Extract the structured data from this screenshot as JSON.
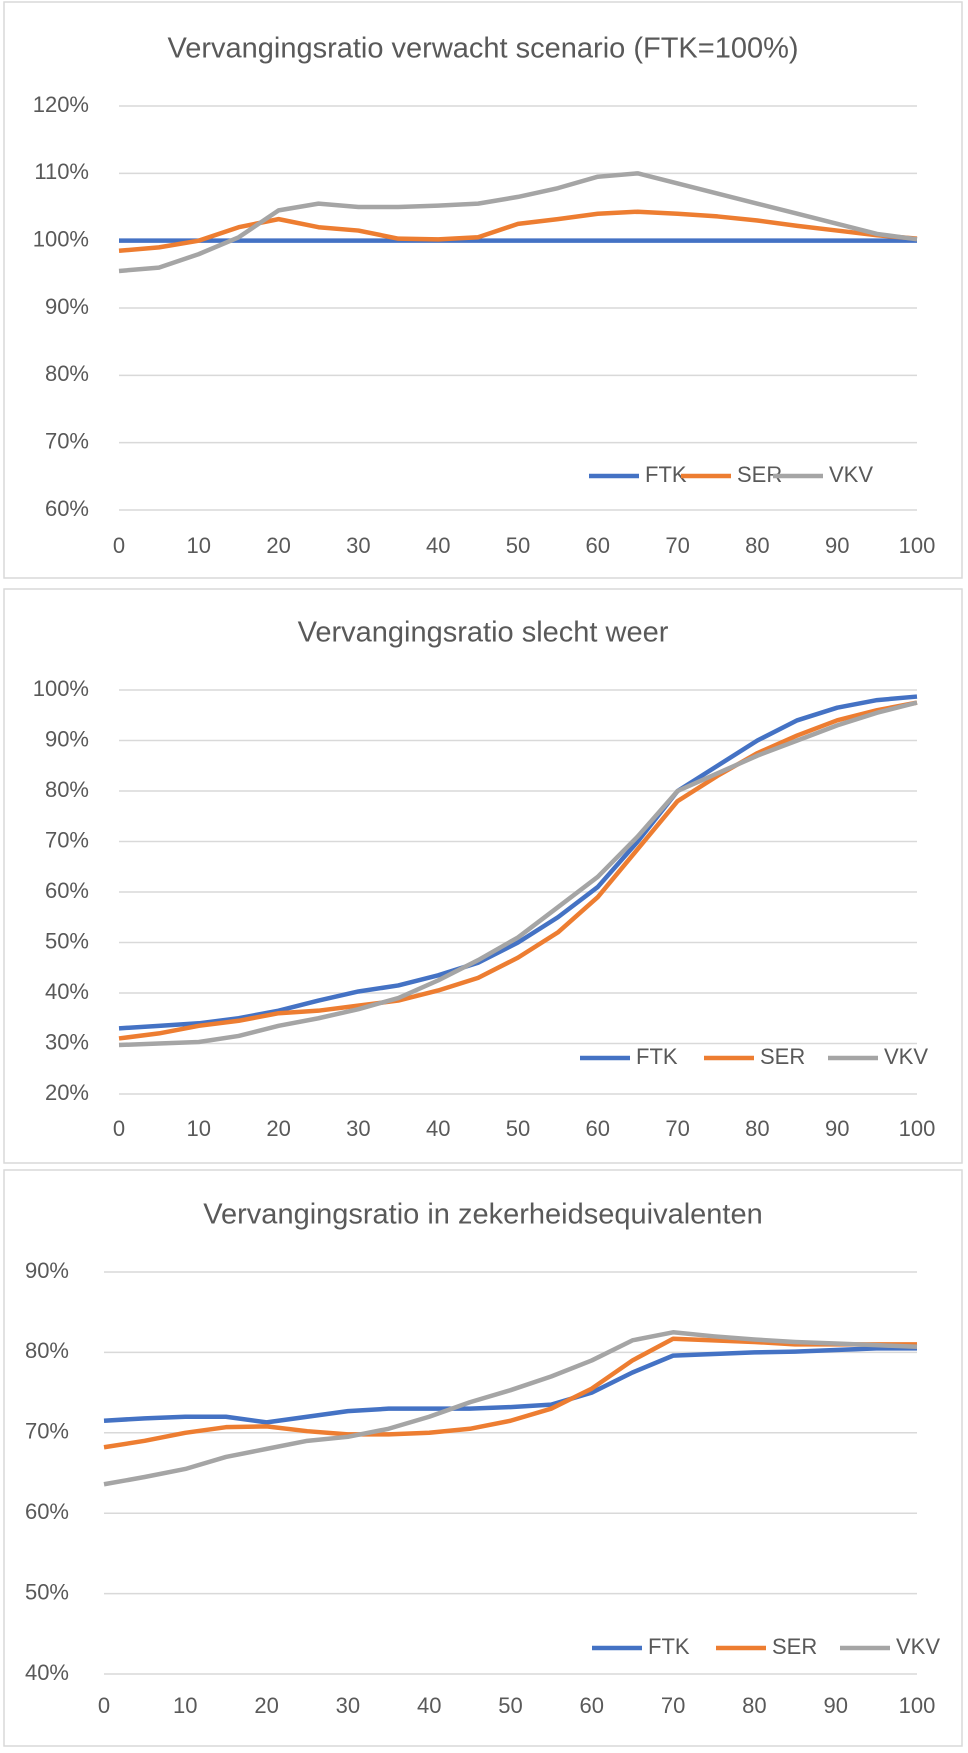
{
  "chart_data": [
    {
      "type": "line",
      "title": "Vervangingsratio verwacht scenario (FTK=100%)",
      "x": [
        0,
        5,
        10,
        15,
        20,
        25,
        30,
        35,
        40,
        45,
        50,
        55,
        60,
        65,
        70,
        75,
        80,
        85,
        90,
        95,
        100
      ],
      "xlim": [
        0,
        100
      ],
      "xticks": [
        0,
        10,
        20,
        30,
        40,
        50,
        60,
        70,
        80,
        90,
        100
      ],
      "ylim": [
        60,
        120
      ],
      "yticks": [
        {
          "value": 60,
          "label": "60%"
        },
        {
          "value": 70,
          "label": "70%"
        },
        {
          "value": 80,
          "label": "80%"
        },
        {
          "value": 90,
          "label": "90%"
        },
        {
          "value": 100,
          "label": "100%"
        },
        {
          "value": 110,
          "label": "110%"
        },
        {
          "value": 120,
          "label": "120%"
        }
      ],
      "grid": true,
      "legend": "bottom-right",
      "series": [
        {
          "name": "FTK",
          "color": "#4472c4",
          "values": [
            100,
            100,
            100,
            100,
            100,
            100,
            100,
            100,
            100,
            100,
            100,
            100,
            100,
            100,
            100,
            100,
            100,
            100,
            100,
            100,
            100
          ]
        },
        {
          "name": "SER",
          "color": "#ed7d31",
          "values": [
            98.5,
            99,
            100,
            102,
            103.2,
            102,
            101.5,
            100.3,
            100.2,
            100.5,
            102.5,
            103.2,
            104,
            104.3,
            104,
            103.6,
            103,
            102.2,
            101.5,
            100.8,
            100.3
          ]
        },
        {
          "name": "VKV",
          "color": "#a5a5a5",
          "values": [
            95.5,
            96,
            98,
            100.5,
            104.5,
            105.5,
            105,
            105,
            105.2,
            105.5,
            106.5,
            107.8,
            109.5,
            110,
            108.5,
            107,
            105.5,
            104,
            102.5,
            101,
            100.2
          ]
        }
      ]
    },
    {
      "type": "line",
      "title": "Vervangingsratio slecht weer",
      "x": [
        0,
        5,
        10,
        15,
        20,
        25,
        30,
        35,
        40,
        45,
        50,
        55,
        60,
        65,
        70,
        75,
        80,
        85,
        90,
        95,
        100
      ],
      "xlim": [
        0,
        100
      ],
      "xticks": [
        0,
        10,
        20,
        30,
        40,
        50,
        60,
        70,
        80,
        90,
        100
      ],
      "ylim": [
        20,
        100
      ],
      "yticks": [
        {
          "value": 20,
          "label": "20%"
        },
        {
          "value": 30,
          "label": "30%"
        },
        {
          "value": 40,
          "label": "40%"
        },
        {
          "value": 50,
          "label": "50%"
        },
        {
          "value": 60,
          "label": "60%"
        },
        {
          "value": 70,
          "label": "70%"
        },
        {
          "value": 80,
          "label": "80%"
        },
        {
          "value": 90,
          "label": "90%"
        },
        {
          "value": 100,
          "label": "100%"
        }
      ],
      "grid": true,
      "legend": "bottom-right",
      "series": [
        {
          "name": "FTK",
          "color": "#4472c4",
          "values": [
            33,
            33.5,
            34,
            35,
            36.5,
            38.5,
            40.3,
            41.5,
            43.5,
            46,
            50,
            55,
            61,
            70,
            80,
            85,
            90,
            94,
            96.5,
            98,
            98.7
          ]
        },
        {
          "name": "SER",
          "color": "#ed7d31",
          "values": [
            31,
            32,
            33.5,
            34.5,
            36,
            36.5,
            37.5,
            38.5,
            40.5,
            43,
            47,
            52,
            59,
            68.5,
            78,
            83,
            87.5,
            91,
            94,
            96,
            97.5
          ]
        },
        {
          "name": "VKV",
          "color": "#a5a5a5",
          "values": [
            29.7,
            30,
            30.3,
            31.5,
            33.5,
            35,
            36.8,
            39,
            42.5,
            46.5,
            51,
            57,
            63,
            71,
            80,
            83.5,
            87,
            90,
            93,
            95.5,
            97.5
          ]
        }
      ]
    },
    {
      "type": "line",
      "title": "Vervangingsratio in zekerheidsequivalenten",
      "x": [
        0,
        5,
        10,
        15,
        20,
        25,
        30,
        35,
        40,
        45,
        50,
        55,
        60,
        65,
        70,
        75,
        80,
        85,
        90,
        95,
        100
      ],
      "xlim": [
        0,
        100
      ],
      "xticks": [
        0,
        10,
        20,
        30,
        40,
        50,
        60,
        70,
        80,
        90,
        100
      ],
      "ylim": [
        40,
        90
      ],
      "yticks": [
        {
          "value": 40,
          "label": "40%"
        },
        {
          "value": 50,
          "label": "50%"
        },
        {
          "value": 60,
          "label": "60%"
        },
        {
          "value": 70,
          "label": "70%"
        },
        {
          "value": 80,
          "label": "80%"
        },
        {
          "value": 90,
          "label": "90%"
        }
      ],
      "grid": true,
      "legend": "bottom-right",
      "series": [
        {
          "name": "FTK",
          "color": "#4472c4",
          "values": [
            71.5,
            71.8,
            72,
            72,
            71.3,
            72,
            72.7,
            73,
            73,
            73,
            73.2,
            73.5,
            75,
            77.5,
            79.6,
            79.8,
            80,
            80.1,
            80.3,
            80.5,
            80.5
          ]
        },
        {
          "name": "SER",
          "color": "#ed7d31",
          "values": [
            68.2,
            69,
            70,
            70.7,
            70.8,
            70.2,
            69.8,
            69.8,
            70,
            70.5,
            71.5,
            73,
            75.5,
            79,
            81.7,
            81.5,
            81.3,
            81,
            81,
            81,
            81
          ]
        },
        {
          "name": "VKV",
          "color": "#a5a5a5",
          "values": [
            63.6,
            64.5,
            65.5,
            67,
            68,
            69,
            69.5,
            70.5,
            72,
            73.8,
            75.3,
            77,
            79,
            81.5,
            82.5,
            82,
            81.6,
            81.3,
            81.1,
            80.9,
            80.7
          ]
        }
      ]
    }
  ]
}
